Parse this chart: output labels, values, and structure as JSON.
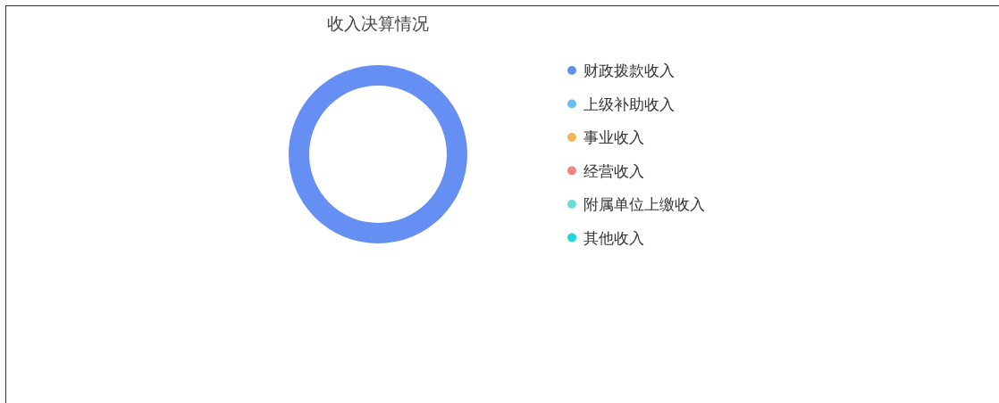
{
  "chart_data": {
    "type": "donut",
    "title": "收入决算情况",
    "categories": [
      "财政拨款收入",
      "上级补助收入",
      "事业收入",
      "经营收入",
      "附属单位上缴收入",
      "其他收入"
    ],
    "values": [
      100,
      0,
      0,
      0,
      0,
      0
    ],
    "colors": [
      "#658ff3",
      "#6bbcf5",
      "#f5b65a",
      "#f08585",
      "#6cdada",
      "#1ed8d8"
    ],
    "legend": "right"
  }
}
